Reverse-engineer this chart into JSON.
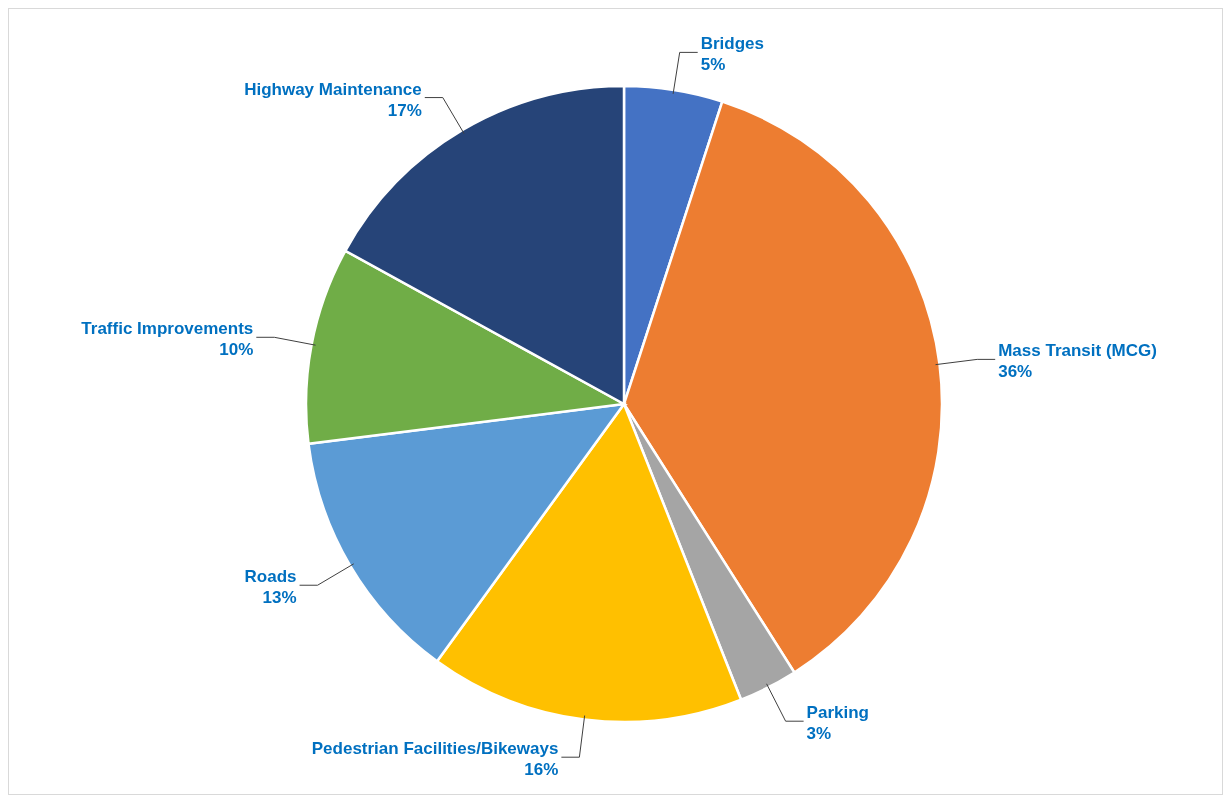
{
  "chart_data": {
    "type": "pie",
    "categories": [
      "Bridges",
      "Mass Transit (MCG)",
      "Parking",
      "Pedestrian Facilities/Bikeways",
      "Roads",
      "Traffic Improvements",
      "Highway Maintenance"
    ],
    "values": [
      5,
      36,
      3,
      16,
      13,
      10,
      17
    ],
    "colors": [
      "#4472c4",
      "#ed7d31",
      "#a5a5a5",
      "#ffc000",
      "#5b9bd5",
      "#70ad47",
      "#264478"
    ],
    "value_labels": [
      "5%",
      "36%",
      "3%",
      "16%",
      "13%",
      "10%",
      "17%"
    ]
  }
}
